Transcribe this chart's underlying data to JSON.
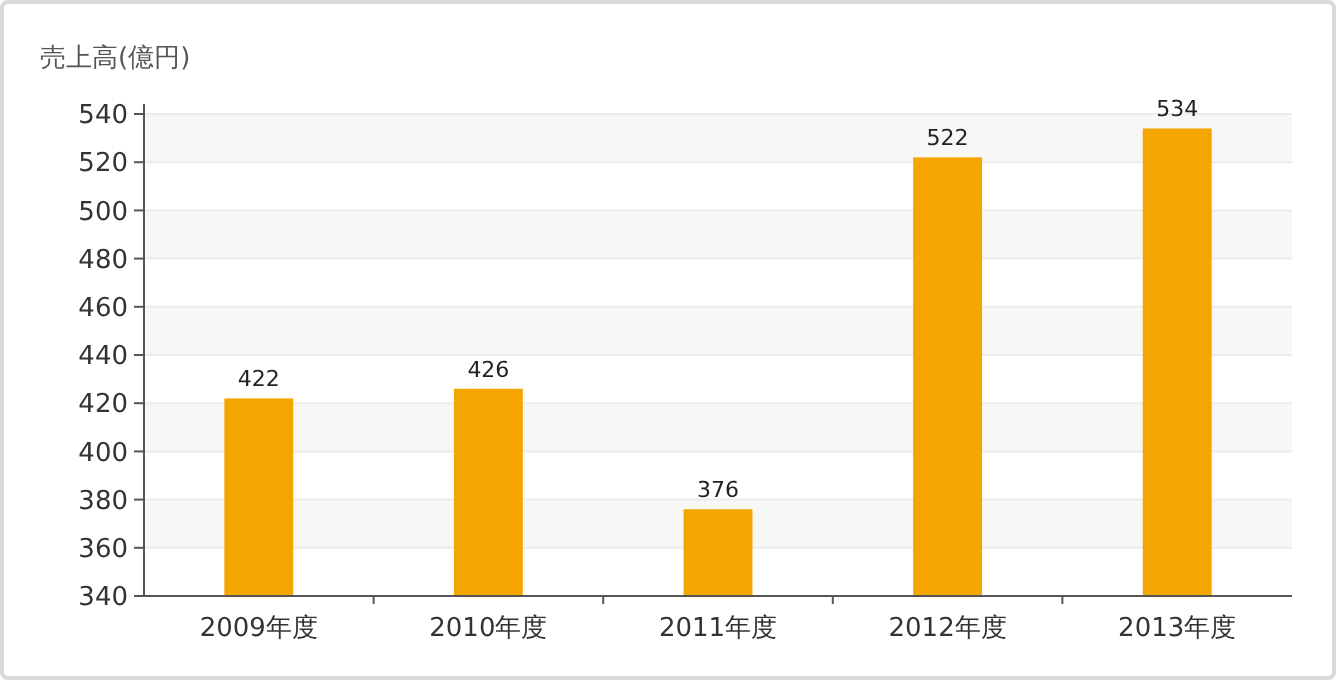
{
  "chart_data": {
    "type": "bar",
    "ylabel": "売上高(億円)",
    "categories": [
      "2009年度",
      "2010年度",
      "2011年度",
      "2012年度",
      "2013年度"
    ],
    "values": [
      422,
      426,
      376,
      522,
      534
    ],
    "color": "#f5a500",
    "ylim": [
      340,
      540
    ],
    "yticks": [
      340,
      360,
      380,
      400,
      420,
      440,
      460,
      480,
      500,
      520,
      540
    ],
    "grid": "y",
    "data_labels": true
  }
}
